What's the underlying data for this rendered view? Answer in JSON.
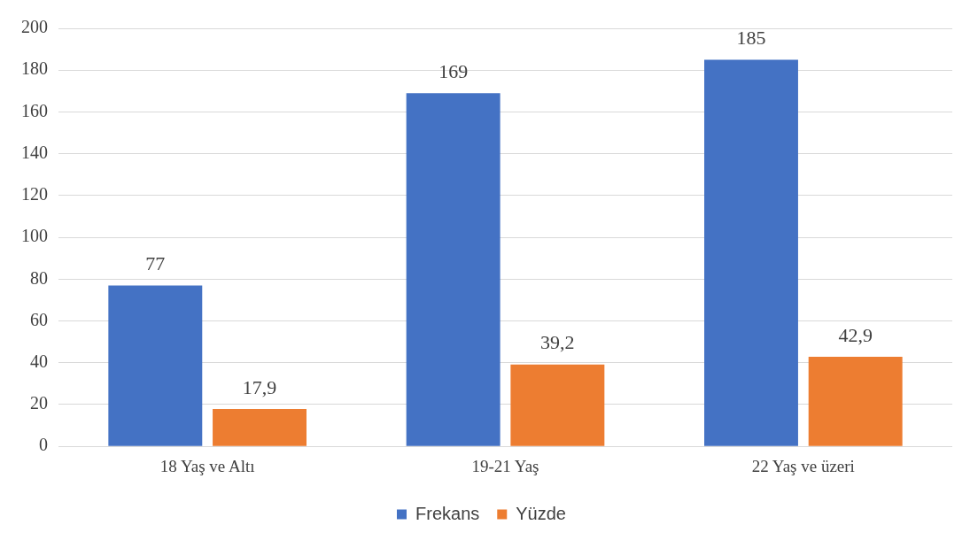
{
  "chart_data": {
    "type": "bar",
    "categories": [
      "18 Yaş ve Altı",
      "19-21 Yaş",
      "22 Yaş ve üzeri"
    ],
    "series": [
      {
        "name": "Frekans",
        "color": "#4472c4",
        "values": [
          77,
          169,
          185
        ],
        "value_labels": [
          "77",
          "169",
          "185"
        ]
      },
      {
        "name": "Yüzde",
        "color": "#ed7d31",
        "values": [
          17.9,
          39.2,
          42.9
        ],
        "value_labels": [
          "17,9",
          "39,2",
          "42,9"
        ]
      }
    ],
    "ylim": [
      0,
      200
    ],
    "yticks": [
      0,
      20,
      40,
      60,
      80,
      100,
      120,
      140,
      160,
      180,
      200
    ],
    "grid": "y",
    "legend": "bottom"
  }
}
